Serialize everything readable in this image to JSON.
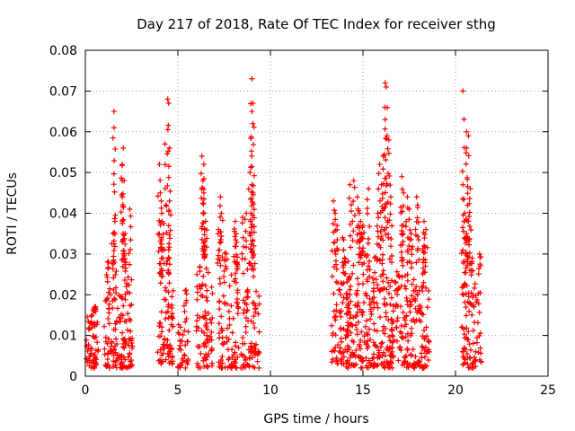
{
  "chart_data": {
    "type": "scatter",
    "title": "Day 217 of 2018, Rate Of TEC Index for receiver sthg",
    "xlabel": "GPS time / hours",
    "ylabel": "ROTI / TECUs",
    "xlim": [
      0,
      25
    ],
    "ylim": [
      0,
      0.08
    ],
    "x_ticks": [
      0,
      5,
      10,
      15,
      20,
      25
    ],
    "x_tick_labels": [
      "0",
      "5",
      "10",
      "15",
      "20",
      "25"
    ],
    "y_ticks": [
      0,
      0.01,
      0.02,
      0.03,
      0.04,
      0.05,
      0.06,
      0.07,
      0.08
    ],
    "y_tick_labels": [
      "0",
      "0.01",
      "0.02",
      "0.03",
      "0.04",
      "0.05",
      "0.06",
      "0.07",
      "0.08"
    ],
    "grid": true,
    "marker": "plus",
    "marker_color": "#ff0000",
    "clusters": [
      {
        "x_range": [
          0.05,
          0.7
        ],
        "base": [
          0.002,
          0.016
        ],
        "count": 60,
        "spikes": [
          [
            0.5,
            0.017
          ]
        ]
      },
      {
        "x_range": [
          1.0,
          1.9
        ],
        "base": [
          0.002,
          0.022
        ],
        "count": 70,
        "spikes": [
          [
            1.5,
            0.035
          ],
          [
            1.55,
            0.065
          ],
          [
            1.55,
            0.061
          ],
          [
            1.6,
            0.038
          ],
          [
            1.2,
            0.028
          ]
        ]
      },
      {
        "x_range": [
          1.9,
          2.55
        ],
        "base": [
          0.002,
          0.025
        ],
        "count": 70,
        "spikes": [
          [
            2.0,
            0.052
          ],
          [
            2.05,
            0.056
          ],
          [
            2.1,
            0.048
          ],
          [
            2.0,
            0.044
          ],
          [
            2.15,
            0.035
          ],
          [
            2.4,
            0.041
          ],
          [
            2.1,
            0.03
          ]
        ]
      },
      {
        "x_range": [
          3.9,
          4.75
        ],
        "base": [
          0.003,
          0.022
        ],
        "count": 70,
        "spikes": [
          [
            4.0,
            0.052
          ],
          [
            4.05,
            0.045
          ],
          [
            4.1,
            0.043
          ],
          [
            4.1,
            0.034
          ],
          [
            4.15,
            0.038
          ],
          [
            4.3,
            0.057
          ],
          [
            4.45,
            0.068
          ],
          [
            4.5,
            0.067
          ],
          [
            4.55,
            0.056
          ],
          [
            4.55,
            0.043
          ],
          [
            4.5,
            0.031
          ]
        ]
      },
      {
        "x_range": [
          5.0,
          5.6
        ],
        "base": [
          0.002,
          0.015
        ],
        "count": 35,
        "spikes": [
          [
            5.4,
            0.021
          ]
        ]
      },
      {
        "x_range": [
          6.0,
          6.9
        ],
        "base": [
          0.002,
          0.028
        ],
        "count": 80,
        "spikes": [
          [
            6.3,
            0.054
          ],
          [
            6.4,
            0.052
          ],
          [
            6.35,
            0.048
          ],
          [
            6.4,
            0.045
          ],
          [
            6.5,
            0.038
          ],
          [
            6.45,
            0.032
          ]
        ]
      },
      {
        "x_range": [
          7.2,
          8.3
        ],
        "base": [
          0.002,
          0.026
        ],
        "count": 85,
        "spikes": [
          [
            7.2,
            0.036
          ],
          [
            7.3,
            0.044
          ],
          [
            7.35,
            0.04
          ],
          [
            7.6,
            0.03
          ],
          [
            8.1,
            0.038
          ],
          [
            8.15,
            0.035
          ],
          [
            8.2,
            0.028
          ]
        ]
      },
      {
        "x_range": [
          8.4,
          9.4
        ],
        "base": [
          0.002,
          0.024
        ],
        "count": 75,
        "spikes": [
          [
            8.5,
            0.039
          ],
          [
            8.7,
            0.04
          ],
          [
            9.0,
            0.073
          ],
          [
            9.05,
            0.067
          ],
          [
            9.0,
            0.065
          ],
          [
            9.05,
            0.062
          ],
          [
            8.9,
            0.05
          ],
          [
            9.0,
            0.047
          ],
          [
            9.05,
            0.045
          ],
          [
            8.95,
            0.04
          ],
          [
            9.1,
            0.032
          ]
        ]
      },
      {
        "x_range": [
          13.3,
          14.2
        ],
        "base": [
          0.003,
          0.025
        ],
        "count": 70,
        "spikes": [
          [
            13.4,
            0.043
          ],
          [
            13.5,
            0.04
          ],
          [
            13.6,
            0.037
          ],
          [
            13.9,
            0.034
          ],
          [
            14.0,
            0.029
          ]
        ]
      },
      {
        "x_range": [
          14.1,
          15.6
        ],
        "base": [
          0.002,
          0.03
        ],
        "count": 150,
        "spikes": [
          [
            14.3,
            0.047
          ],
          [
            14.5,
            0.048
          ],
          [
            14.7,
            0.044
          ],
          [
            14.8,
            0.04
          ],
          [
            15.0,
            0.037
          ],
          [
            15.3,
            0.046
          ],
          [
            14.9,
            0.035
          ]
        ]
      },
      {
        "x_range": [
          15.5,
          16.6
        ],
        "base": [
          0.002,
          0.03
        ],
        "count": 120,
        "spikes": [
          [
            15.9,
            0.052
          ],
          [
            16.1,
            0.054
          ],
          [
            16.2,
            0.072
          ],
          [
            16.25,
            0.071
          ],
          [
            16.2,
            0.063
          ],
          [
            16.3,
            0.059
          ],
          [
            16.4,
            0.058
          ],
          [
            16.0,
            0.047
          ],
          [
            15.8,
            0.04
          ],
          [
            16.5,
            0.044
          ]
        ]
      },
      {
        "x_range": [
          16.6,
          17.8
        ],
        "base": [
          0.002,
          0.026
        ],
        "count": 100,
        "spikes": [
          [
            17.1,
            0.049
          ],
          [
            17.2,
            0.045
          ],
          [
            17.4,
            0.044
          ],
          [
            17.5,
            0.041
          ],
          [
            17.9,
            0.044
          ],
          [
            17.95,
            0.042
          ],
          [
            17.1,
            0.037
          ],
          [
            17.6,
            0.035
          ]
        ]
      },
      {
        "x_range": [
          17.8,
          18.6
        ],
        "base": [
          0.002,
          0.024
        ],
        "count": 70,
        "spikes": [
          [
            18.3,
            0.038
          ],
          [
            18.4,
            0.036
          ],
          [
            18.3,
            0.032
          ]
        ]
      },
      {
        "x_range": [
          20.3,
          21.4
        ],
        "base": [
          0.002,
          0.024
        ],
        "count": 90,
        "spikes": [
          [
            20.4,
            0.07
          ],
          [
            20.4,
            0.047
          ],
          [
            20.6,
            0.06
          ],
          [
            20.7,
            0.059
          ],
          [
            20.6,
            0.056
          ],
          [
            20.8,
            0.046
          ],
          [
            20.5,
            0.04
          ],
          [
            20.7,
            0.038
          ],
          [
            20.6,
            0.035
          ],
          [
            21.3,
            0.03
          ],
          [
            20.9,
            0.029
          ]
        ]
      }
    ]
  }
}
